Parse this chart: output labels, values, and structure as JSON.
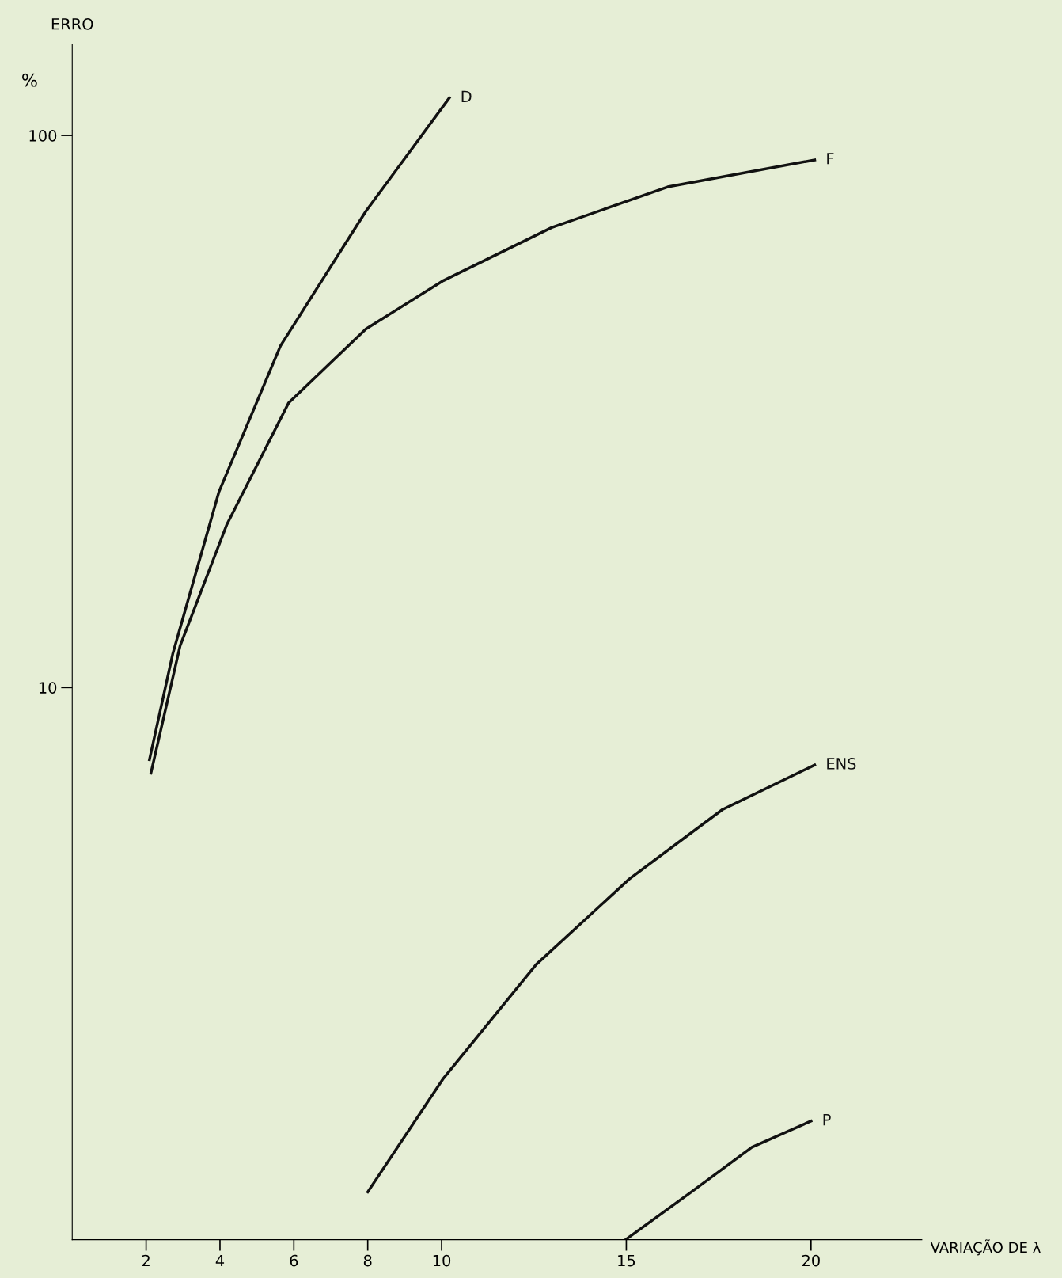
{
  "chart_data": {
    "type": "line",
    "xlabel": "VARIAÇÃO DE λ",
    "ylabel": "ERRO",
    "annotations": [
      "%"
    ],
    "log": "y",
    "xlim": [
      0,
      23
    ],
    "xticks": [
      2,
      4,
      6,
      8,
      10,
      15,
      20
    ],
    "ylim": [
      1,
      146
    ],
    "yticks": [
      10,
      100
    ],
    "grid": false,
    "legend": false,
    "marker": "none",
    "line_style": "solid",
    "series": [
      {
        "name": "D",
        "color": "#111111",
        "x": [
          2.09,
          2.72,
          3.97,
          5.64,
          7.95,
          10.21
        ],
        "values": [
          7.4,
          11.5,
          22.6,
          41.6,
          72.9,
          117
        ]
      },
      {
        "name": "F",
        "color": "#111111",
        "x": [
          2.13,
          2.92,
          4.18,
          5.86,
          7.95,
          10.05,
          12.98,
          16.12,
          20.1
        ],
        "values": [
          7.0,
          11.9,
          19.7,
          32.8,
          44.6,
          54.6,
          68.1,
          80.7,
          90.3
        ]
      },
      {
        "name": "ENS",
        "color": "#111111",
        "x": [
          8.0,
          10.05,
          12.56,
          15.08,
          17.6,
          20.1
        ],
        "values": [
          1.22,
          1.96,
          3.15,
          4.5,
          6.01,
          7.24
        ]
      },
      {
        "name": "P",
        "color": "#111111",
        "x": [
          14.98,
          16.76,
          18.4,
          20.0
        ],
        "values": [
          1.0,
          1.22,
          1.47,
          1.64
        ]
      }
    ]
  }
}
